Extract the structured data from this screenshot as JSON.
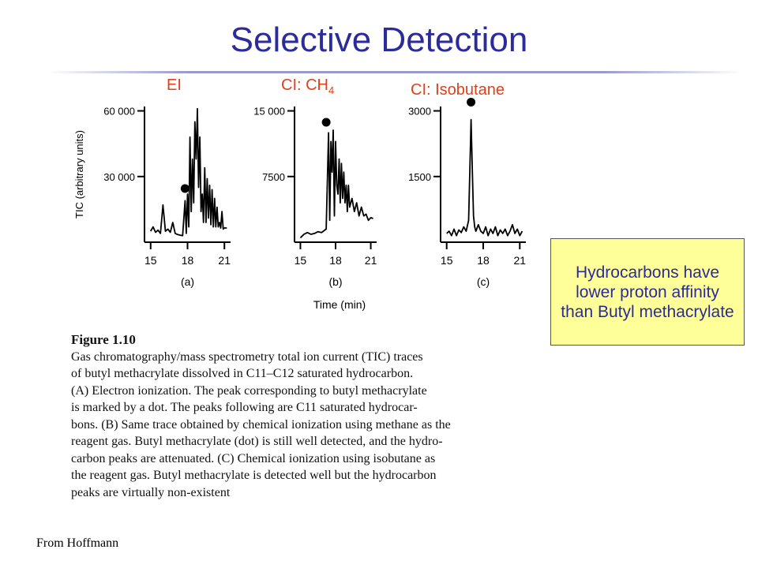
{
  "slide": {
    "title": "Selective Detection",
    "ion_labels": {
      "ei": "EI",
      "ch4_prefix": "CI: CH",
      "ch4_sub": "4",
      "isobutane": "CI: Isobutane"
    },
    "caption": {
      "title": "Figure 1.10",
      "lines": [
        "Gas chromatography/mass spectrometry total ion current (TIC) traces",
        "of butyl methacrylate dissolved in C11–C12 saturated hydrocarbon.",
        "(A) Electron ionization. The peak corresponding to butyl methacrylate",
        "is marked by a dot. The peaks following are C11 saturated hydrocar-",
        "bons. (B) Same trace obtained by chemical ionization using methane as the",
        "reagent gas. Butyl methacrylate (dot) is still well detected, and the hydro-",
        "carbon peaks are attenuated. (C) Chemical ionization using isobutane as",
        "the reagent gas. Butyl methacrylate is detected well but the hydrocarbon",
        "peaks are virtually non-existent"
      ]
    },
    "note": "Hydrocarbons have lower proton affinity than Butyl methacrylate",
    "source": "From Hoffmann",
    "colors": {
      "title": "#2b2b9a",
      "ion_label": "#e0401c",
      "note_bg": "#ffff99"
    }
  },
  "chart_data": [
    {
      "type": "line",
      "panel_label": "(a)",
      "ylabel": "TIC (arbitrary units)",
      "xlabel": "",
      "xlim": [
        14.5,
        21.5
      ],
      "ylim": [
        0,
        62000
      ],
      "x_ticks": [
        15,
        18,
        21
      ],
      "y_ticks": [
        {
          "value": 60000,
          "label": "60 000"
        },
        {
          "value": 30000,
          "label": "30 000"
        }
      ],
      "marker": {
        "x": 17.8,
        "y": 24500
      },
      "x": [
        15.0,
        15.2,
        15.4,
        15.6,
        15.8,
        16.0,
        16.2,
        16.4,
        16.6,
        16.8,
        17.0,
        17.2,
        17.4,
        17.6,
        17.8,
        17.9,
        18.0,
        18.1,
        18.2,
        18.3,
        18.4,
        18.5,
        18.6,
        18.7,
        18.8,
        18.9,
        19.0,
        19.1,
        19.2,
        19.3,
        19.4,
        19.5,
        19.6,
        19.7,
        19.8,
        19.9,
        20.0,
        20.1,
        20.2,
        20.3,
        20.4,
        20.5,
        20.6,
        20.7,
        20.8,
        20.9,
        21.0,
        21.2
      ],
      "y": [
        5000,
        7000,
        4500,
        5500,
        4000,
        17000,
        5000,
        6000,
        4500,
        9000,
        4000,
        3500,
        3200,
        3000,
        19000,
        4000,
        22000,
        7000,
        48000,
        14000,
        38000,
        18000,
        55000,
        38000,
        61000,
        25000,
        48000,
        14000,
        22000,
        9000,
        34000,
        9000,
        29000,
        11000,
        26000,
        8000,
        24000,
        7000,
        20000,
        7000,
        16000,
        7000,
        9000,
        6500,
        14000,
        6000,
        6500,
        6500
      ]
    },
    {
      "type": "line",
      "panel_label": "(b)",
      "ylabel": "",
      "xlabel": "Time (min)",
      "xlim": [
        14.5,
        21.5
      ],
      "ylim": [
        0,
        15500
      ],
      "x_ticks": [
        15,
        18,
        21
      ],
      "y_ticks": [
        {
          "value": 15000,
          "label": "15 000"
        },
        {
          "value": 7500,
          "label": "7500"
        }
      ],
      "marker": {
        "x": 17.2,
        "y": 13700
      },
      "x": [
        15.0,
        15.3,
        15.6,
        15.9,
        16.2,
        16.5,
        16.8,
        17.0,
        17.2,
        17.3,
        17.4,
        17.5,
        17.6,
        17.7,
        17.8,
        17.9,
        18.0,
        18.1,
        18.2,
        18.3,
        18.4,
        18.5,
        18.6,
        18.7,
        18.8,
        18.9,
        19.0,
        19.1,
        19.2,
        19.4,
        19.6,
        19.8,
        20.0,
        20.2,
        20.4,
        20.6,
        20.8,
        21.0,
        21.2
      ],
      "y": [
        500,
        900,
        1100,
        900,
        1000,
        1200,
        1100,
        1300,
        1500,
        7000,
        12500,
        2500,
        11500,
        8000,
        12800,
        3000,
        11500,
        6500,
        5500,
        9500,
        4500,
        9000,
        5000,
        8000,
        4500,
        6500,
        3500,
        6500,
        4000,
        5000,
        3500,
        4500,
        3000,
        4000,
        3000,
        3200,
        2500,
        2800,
        2700
      ]
    },
    {
      "type": "line",
      "panel_label": "(c)",
      "ylabel": "",
      "xlabel": "",
      "xlim": [
        14.5,
        21.5
      ],
      "ylim": [
        0,
        3100
      ],
      "x_ticks": [
        15,
        18,
        21
      ],
      "y_ticks": [
        {
          "value": 3000,
          "label": "3000"
        },
        {
          "value": 1500,
          "label": "1500"
        }
      ],
      "marker": {
        "x": 17.0,
        "y": 3200
      },
      "x": [
        15.0,
        15.2,
        15.4,
        15.6,
        15.8,
        16.0,
        16.2,
        16.4,
        16.6,
        16.8,
        16.9,
        17.0,
        17.1,
        17.2,
        17.3,
        17.4,
        17.6,
        17.8,
        18.0,
        18.2,
        18.4,
        18.6,
        18.8,
        19.0,
        19.2,
        19.4,
        19.6,
        19.8,
        20.0,
        20.2,
        20.4,
        20.6,
        20.8,
        21.0,
        21.2
      ],
      "y": [
        200,
        250,
        150,
        300,
        150,
        280,
        220,
        350,
        250,
        500,
        1600,
        2800,
        1700,
        600,
        350,
        250,
        400,
        250,
        200,
        350,
        150,
        300,
        200,
        350,
        150,
        280,
        200,
        300,
        150,
        250,
        400,
        200,
        300,
        150,
        250
      ]
    }
  ]
}
